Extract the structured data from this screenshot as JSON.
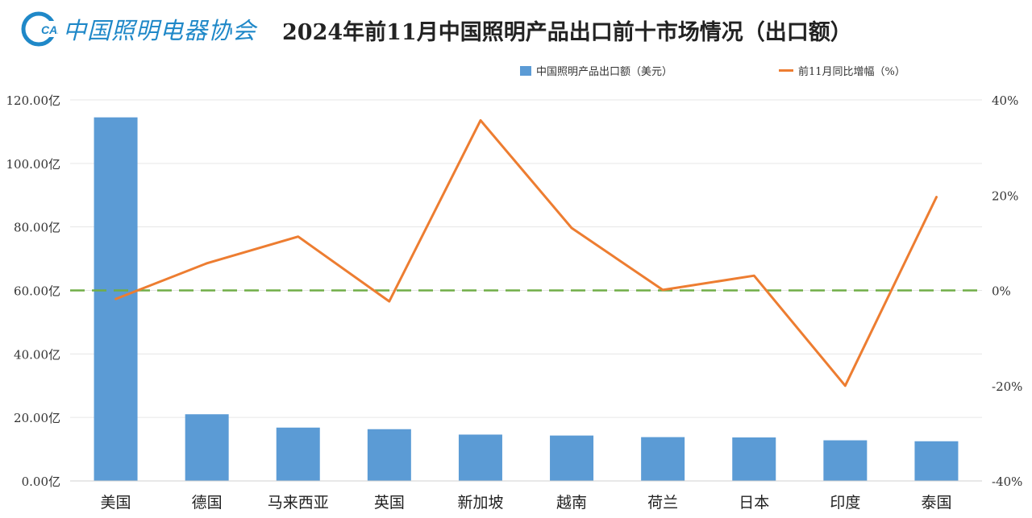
{
  "header": {
    "logo_mark": "CALI",
    "logo_text": "中国照明电器协会",
    "title": "2024年前11月中国照明产品出口前十市场情况（出口额）"
  },
  "colors": {
    "bar": "#5b9bd5",
    "line": "#ed7d31",
    "reference": "#70ad47",
    "grid": "#e6e6e6",
    "logo": "#1f88c8"
  },
  "chart_data": {
    "type": "bar",
    "title": "2024年前11月中国照明产品出口前十市场情况（出口额）",
    "categories": [
      "美国",
      "德国",
      "马来西亚",
      "英国",
      "新加坡",
      "越南",
      "荷兰",
      "日本",
      "印度",
      "泰国"
    ],
    "series": [
      {
        "name": "中国照明产品出口额（美元）",
        "type": "bar",
        "axis": "left",
        "values": [
          114.5,
          21.0,
          16.8,
          16.3,
          14.6,
          14.3,
          13.8,
          13.7,
          12.8,
          12.5
        ]
      },
      {
        "name": "前11月同比增幅（%）",
        "type": "line",
        "axis": "right",
        "values": [
          -1.8,
          5.7,
          11.3,
          -2.3,
          35.7,
          13.1,
          0.1,
          3.1,
          -20.0,
          19.6
        ]
      }
    ],
    "y_left": {
      "range": [
        0,
        120
      ],
      "ticks": [
        0,
        20,
        40,
        60,
        80,
        100,
        120
      ],
      "tick_labels": [
        "0.00亿",
        "20.00亿",
        "40.00亿",
        "60.00亿",
        "80.00亿",
        "100.00亿",
        "120.00亿"
      ]
    },
    "y_right": {
      "range": [
        -40,
        40
      ],
      "ticks": [
        -40,
        -20,
        0,
        20,
        40
      ],
      "tick_labels": [
        "-40%",
        "-20%",
        "0%",
        "20%",
        "40%"
      ]
    },
    "reference_line": {
      "axis": "right",
      "value": 0,
      "style": "dashed"
    },
    "grid": true,
    "legend_position": "top-right"
  }
}
